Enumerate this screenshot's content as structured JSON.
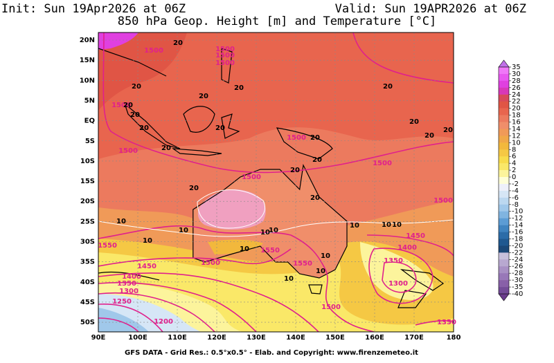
{
  "header": {
    "init": "Init: Sun 19Apr2026 at 06Z",
    "valid": "Valid: Sun 19APR2026 at 06Z",
    "subtitle": "850 hPa Geop. Height [m] and Temperature [°C]"
  },
  "map": {
    "lat_labels": [
      "20N",
      "15N",
      "10N",
      "5N",
      "EQ",
      "5S",
      "10S",
      "15S",
      "20S",
      "25S",
      "30S",
      "35S",
      "40S",
      "45S",
      "50S"
    ],
    "lon_labels": [
      "90E",
      "100E",
      "110E",
      "120E",
      "130E",
      "140E",
      "150E",
      "160E",
      "170E",
      "180"
    ],
    "height_labels": [
      "1500",
      "1500",
      "1500",
      "1500",
      "1500",
      "1500",
      "1500",
      "1500",
      "1500",
      "1500",
      "1500",
      "1500",
      "1550",
      "1550",
      "1550",
      "1450",
      "1450",
      "1400",
      "1400",
      "1350",
      "1350",
      "1300",
      "1300",
      "1250",
      "1200",
      "1350"
    ],
    "temp_labels": [
      "20",
      "20",
      "20",
      "20",
      "20",
      "20",
      "20",
      "20",
      "20",
      "20",
      "20",
      "20",
      "20",
      "20",
      "20",
      "20",
      "20",
      "20",
      "10",
      "10",
      "10",
      "10",
      "10",
      "10",
      "10",
      "10",
      "10",
      "10",
      "10",
      "10"
    ]
  },
  "colorbar": {
    "levels": [
      35,
      30,
      28,
      26,
      24,
      22,
      20,
      18,
      16,
      14,
      12,
      10,
      8,
      6,
      4,
      2,
      0,
      -2,
      -4,
      -6,
      -8,
      -10,
      -12,
      -14,
      -16,
      -18,
      -20,
      -22,
      -24,
      -26,
      -28,
      -30,
      -35,
      -40
    ],
    "colors": [
      "#f078f8",
      "#e858f0",
      "#e040e0",
      "#d838b8",
      "#d84a5a",
      "#e05545",
      "#e8654e",
      "#ec7a5e",
      "#f08e6a",
      "#f09a58",
      "#f0a848",
      "#f2b83c",
      "#f5c844",
      "#f8dc4c",
      "#fae868",
      "#fcf49c",
      "#fefed8",
      "#eef0fa",
      "#d6e6f6",
      "#bcd8f0",
      "#a0c8ea",
      "#80b4e0",
      "#5c9cd4",
      "#4084c0",
      "#2c6ca8",
      "#205890",
      "#1c4878",
      "#c8c0dc",
      "#b8a8d0",
      "#a890c4",
      "#9878b8",
      "#8860a8",
      "#744c98"
    ],
    "top_color": "#c070e8",
    "bottom_color": "#6a3c8c"
  },
  "footer": "GFS DATA - Grid Res.: 0.5°x0.5° - Elab. and Copyright: www.firenzemeteo.it"
}
